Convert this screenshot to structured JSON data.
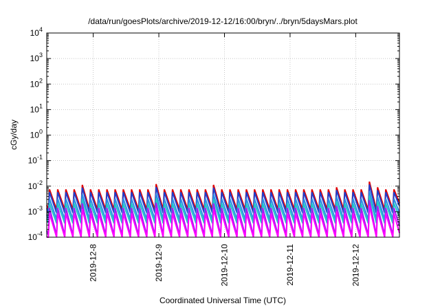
{
  "chart_data": {
    "type": "line",
    "title": "/data/run/goesPlots/archive/2019-12-12/16:00/bryn/../bryn/5daysMars.plot",
    "xlabel": "Coordinated Universal Time (UTC)",
    "ylabel": "cGy/day",
    "yscale": "log",
    "ylim": [
      0.0001,
      10000
    ],
    "y_ticks": [
      {
        "value": 0.0001,
        "base": "10",
        "exp": "-4"
      },
      {
        "value": 0.001,
        "base": "10",
        "exp": "-3"
      },
      {
        "value": 0.01,
        "base": "10",
        "exp": "-2"
      },
      {
        "value": 0.1,
        "base": "10",
        "exp": "-1"
      },
      {
        "value": 1,
        "base": "10",
        "exp": "0"
      },
      {
        "value": 10,
        "base": "10",
        "exp": "1"
      },
      {
        "value": 100,
        "base": "10",
        "exp": "2"
      },
      {
        "value": 1000,
        "base": "10",
        "exp": "3"
      },
      {
        "value": 10000,
        "base": "10",
        "exp": "4"
      }
    ],
    "xlim": [
      "2019-12-07T07:00",
      "2019-12-12T16:00"
    ],
    "x_ticks": [
      {
        "value": "2019-12-08T00:00",
        "label": "2019-12-8"
      },
      {
        "value": "2019-12-09T00:00",
        "label": "2019-12-9"
      },
      {
        "value": "2019-12-10T00:00",
        "label": "2019-12-10"
      },
      {
        "value": "2019-12-11T00:00",
        "label": "2019-12-11"
      },
      {
        "value": "2019-12-12T00:00",
        "label": "2019-12-12"
      }
    ],
    "grid": true,
    "legend": "none",
    "sawtooth": {
      "period_hours": 3,
      "peaks_x": [
        "2019-12-07T08:00",
        "2019-12-07T11:00",
        "2019-12-07T14:00",
        "2019-12-07T17:00",
        "2019-12-07T20:00",
        "2019-12-07T23:00",
        "2019-12-08T02:00",
        "2019-12-08T05:00",
        "2019-12-08T08:00",
        "2019-12-08T11:00",
        "2019-12-08T14:00",
        "2019-12-08T17:00",
        "2019-12-08T20:00",
        "2019-12-08T23:00",
        "2019-12-09T02:00",
        "2019-12-09T05:00",
        "2019-12-09T08:00",
        "2019-12-09T11:00",
        "2019-12-09T14:00",
        "2019-12-09T17:00",
        "2019-12-09T20:00",
        "2019-12-09T23:00",
        "2019-12-10T02:00",
        "2019-12-10T05:00",
        "2019-12-10T08:00",
        "2019-12-10T11:00",
        "2019-12-10T14:00",
        "2019-12-10T17:00",
        "2019-12-10T20:00",
        "2019-12-10T23:00",
        "2019-12-11T02:00",
        "2019-12-11T05:00",
        "2019-12-11T08:00",
        "2019-12-11T11:00",
        "2019-12-11T14:00",
        "2019-12-11T17:00",
        "2019-12-11T20:00",
        "2019-12-11T23:00",
        "2019-12-12T02:00",
        "2019-12-12T05:00",
        "2019-12-12T08:00",
        "2019-12-12T11:00",
        "2019-12-12T14:00"
      ],
      "peak_boost": [
        1.0,
        1.0,
        1.0,
        1.0,
        1.5,
        1.0,
        1.0,
        1.0,
        1.0,
        1.0,
        1.0,
        1.0,
        1.0,
        1.6,
        1.0,
        1.0,
        1.0,
        1.0,
        1.0,
        1.0,
        1.5,
        1.0,
        1.0,
        1.0,
        1.0,
        1.0,
        1.0,
        1.0,
        1.0,
        1.0,
        1.0,
        1.0,
        1.0,
        1.0,
        1.0,
        1.2,
        1.0,
        1.0,
        1.0,
        2.0,
        1.2,
        1.0,
        1.0
      ]
    },
    "series": [
      {
        "color": "#e00000",
        "peak": 0.0075,
        "trough": 0.0012
      },
      {
        "color": "#1f3fcc",
        "peak": 0.0058,
        "trough": 0.0009
      },
      {
        "color": "#2b8fe6",
        "peak": 0.0032,
        "trough": 0.0005
      },
      {
        "color": "#22c6c6",
        "peak": 0.0021,
        "trough": 0.00035
      },
      {
        "color": "#a020f0",
        "peak": 0.0014,
        "trough": 0.00012
      },
      {
        "color": "#ff00ff",
        "peak": 0.00085,
        "trough": 6e-05
      }
    ]
  }
}
